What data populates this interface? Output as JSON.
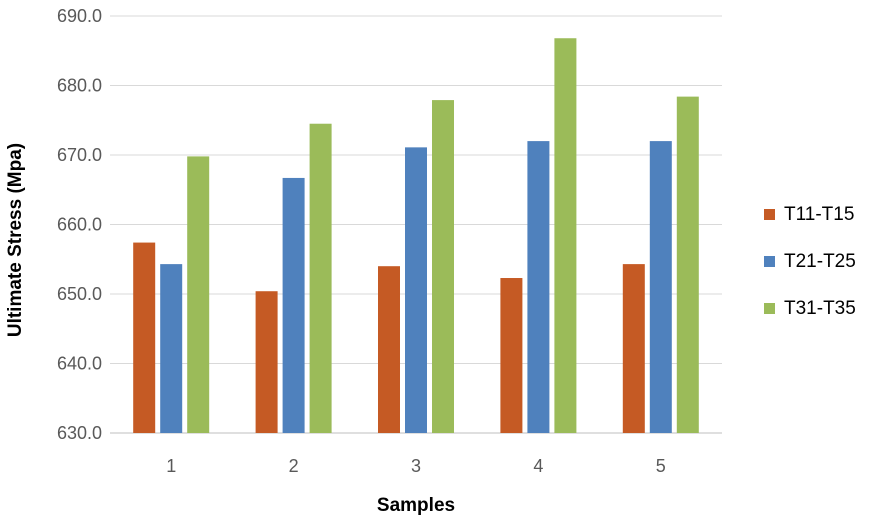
{
  "chart_data": {
    "type": "bar",
    "title": "",
    "xlabel": "Samples",
    "ylabel": "Ultimate Stress (Mpa)",
    "categories": [
      "1",
      "2",
      "3",
      "4",
      "5"
    ],
    "ylim": [
      630,
      690
    ],
    "ytick_step": 10,
    "ytick_labels": [
      "630.0",
      "640.0",
      "650.0",
      "660.0",
      "670.0",
      "680.0",
      "690.0"
    ],
    "grid": true,
    "legend_position": "right",
    "series": [
      {
        "name": "T11-T15",
        "color": "#c55a24",
        "values": [
          657.4,
          650.4,
          654.0,
          652.3,
          654.3
        ]
      },
      {
        "name": "T21-T25",
        "color": "#4f81bd",
        "values": [
          654.3,
          666.7,
          671.1,
          672.0,
          672.0
        ]
      },
      {
        "name": "T31-T35",
        "color": "#9bbb59",
        "values": [
          669.8,
          674.5,
          677.9,
          686.8,
          678.4
        ]
      }
    ]
  }
}
